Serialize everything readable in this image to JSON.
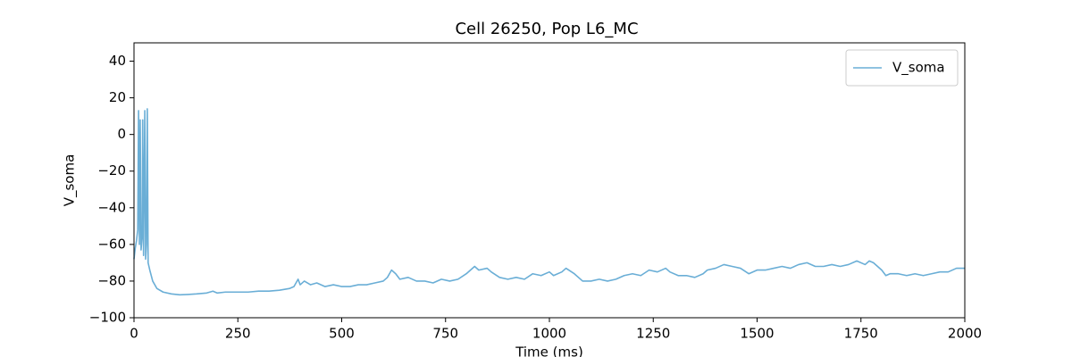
{
  "chart_data": {
    "type": "line",
    "title": "Cell 26250, Pop L6_MC",
    "xlabel": "Time (ms)",
    "ylabel": "V_soma",
    "x": [
      0,
      3,
      6,
      9,
      11,
      13,
      15,
      17,
      20,
      21,
      23,
      26,
      28,
      30,
      32,
      34,
      38,
      45,
      55,
      70,
      90,
      110,
      130,
      150,
      175,
      190,
      200,
      220,
      250,
      275,
      300,
      325,
      350,
      375,
      385,
      395,
      400,
      410,
      425,
      440,
      460,
      480,
      500,
      520,
      540,
      560,
      580,
      600,
      610,
      620,
      630,
      640,
      660,
      680,
      700,
      720,
      740,
      760,
      780,
      800,
      820,
      830,
      850,
      860,
      880,
      900,
      920,
      940,
      960,
      980,
      1000,
      1010,
      1030,
      1040,
      1060,
      1080,
      1100,
      1120,
      1140,
      1160,
      1180,
      1200,
      1220,
      1240,
      1260,
      1280,
      1290,
      1310,
      1330,
      1350,
      1370,
      1380,
      1400,
      1420,
      1440,
      1460,
      1480,
      1500,
      1520,
      1540,
      1560,
      1580,
      1600,
      1620,
      1640,
      1660,
      1680,
      1700,
      1720,
      1740,
      1760,
      1770,
      1780,
      1800,
      1810,
      1820,
      1840,
      1860,
      1880,
      1900,
      1920,
      1940,
      1960,
      1980,
      2000
    ],
    "series": [
      {
        "name": "V_soma",
        "color": "#6aaed6",
        "values": [
          -68,
          -62,
          -58,
          -52,
          13,
          -60,
          8,
          -63,
          -55,
          8,
          -66,
          13,
          -68,
          -60,
          14,
          -70,
          -74,
          -80,
          -84,
          -86,
          -87,
          -87.5,
          -87.3,
          -87,
          -86.5,
          -85.5,
          -86.5,
          -86,
          -86,
          -86,
          -85.5,
          -85.5,
          -85,
          -84,
          -83,
          -79,
          -82,
          -80,
          -82,
          -81,
          -83,
          -82,
          -83,
          -83,
          -82,
          -82,
          -81,
          -80,
          -78,
          -74,
          -76,
          -79,
          -78,
          -80,
          -80,
          -81,
          -79,
          -80,
          -79,
          -76,
          -72,
          -74,
          -73,
          -75,
          -78,
          -79,
          -78,
          -79,
          -76,
          -77,
          -75,
          -77,
          -75,
          -73,
          -76,
          -80,
          -80,
          -79,
          -80,
          -79,
          -77,
          -76,
          -77,
          -74,
          -75,
          -73,
          -75,
          -77,
          -77,
          -78,
          -76,
          -74,
          -73,
          -71,
          -72,
          -73,
          -76,
          -74,
          -74,
          -73,
          -72,
          -73,
          -71,
          -70,
          -72,
          -72,
          -71,
          -72,
          -71,
          -69,
          -71,
          -69,
          -70,
          -74,
          -77,
          -76,
          -76,
          -77,
          -76,
          -77,
          -76,
          -75,
          -75,
          -73,
          -73
        ]
      }
    ],
    "xlim": [
      0,
      2000
    ],
    "ylim": [
      -100,
      50
    ],
    "xticks": [
      0,
      250,
      500,
      750,
      1000,
      1250,
      1500,
      1750,
      2000
    ],
    "yticks": [
      {
        "value": -100,
        "label": "−100"
      },
      {
        "value": -80,
        "label": "−80"
      },
      {
        "value": -60,
        "label": "−60"
      },
      {
        "value": -40,
        "label": "−40"
      },
      {
        "value": -20,
        "label": "−20"
      },
      0,
      20,
      40
    ],
    "legend": "upper right"
  }
}
